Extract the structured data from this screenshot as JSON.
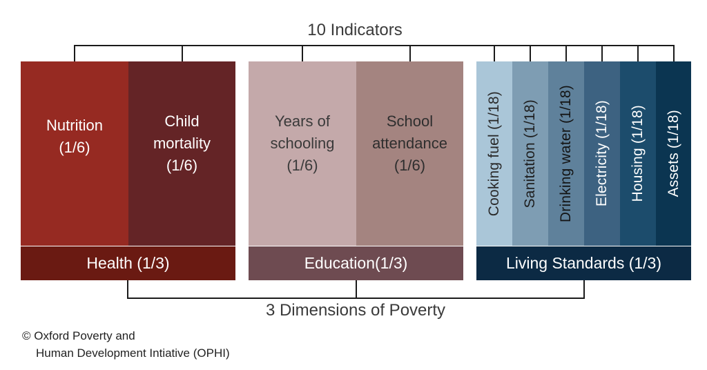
{
  "header": {
    "title": "10 Indicators"
  },
  "footer": {
    "title": "3 Dimensions of Poverty"
  },
  "credit": {
    "line1": "© Oxford Poverty and",
    "line2": "Human Development Intiative (OPHI)"
  },
  "colors": {
    "nutrition": "#962a22",
    "child_mortality": "#642426",
    "health_bar": "#6a1a12",
    "years_schooling": "#c4a9aa",
    "school_attendance": "#a48480",
    "education_bar": "#6e4b51",
    "cooking_fuel": "#aac6d8",
    "sanitation": "#7e9db3",
    "drinking_water": "#5f819b",
    "electricity": "#3d6281",
    "housing": "#1c4c6c",
    "assets": "#0b3551",
    "living_bar": "#0c2a44"
  },
  "dimensions": {
    "health": {
      "label": "Health (1/3)",
      "indicators": [
        {
          "name_lines": [
            "Nutrition",
            "(1/6)"
          ]
        },
        {
          "name_lines": [
            "Child",
            "mortality",
            "(1/6)"
          ]
        }
      ]
    },
    "education": {
      "label": "Education(1/3)",
      "indicators": [
        {
          "name_lines": [
            "Years of",
            "schooling",
            "(1/6)"
          ]
        },
        {
          "name_lines": [
            "School",
            "attendance",
            "(1/6)"
          ]
        }
      ]
    },
    "living": {
      "label": "Living Standards (1/3)",
      "indicators": [
        {
          "name": "Cooking fuel (1/18)"
        },
        {
          "name": "Sanitation (1/18)"
        },
        {
          "name": "Drinking water (1/18)"
        },
        {
          "name": "Electricity (1/18)"
        },
        {
          "name": "Housing (1/18)"
        },
        {
          "name": "Assets (1/18)"
        }
      ]
    }
  }
}
